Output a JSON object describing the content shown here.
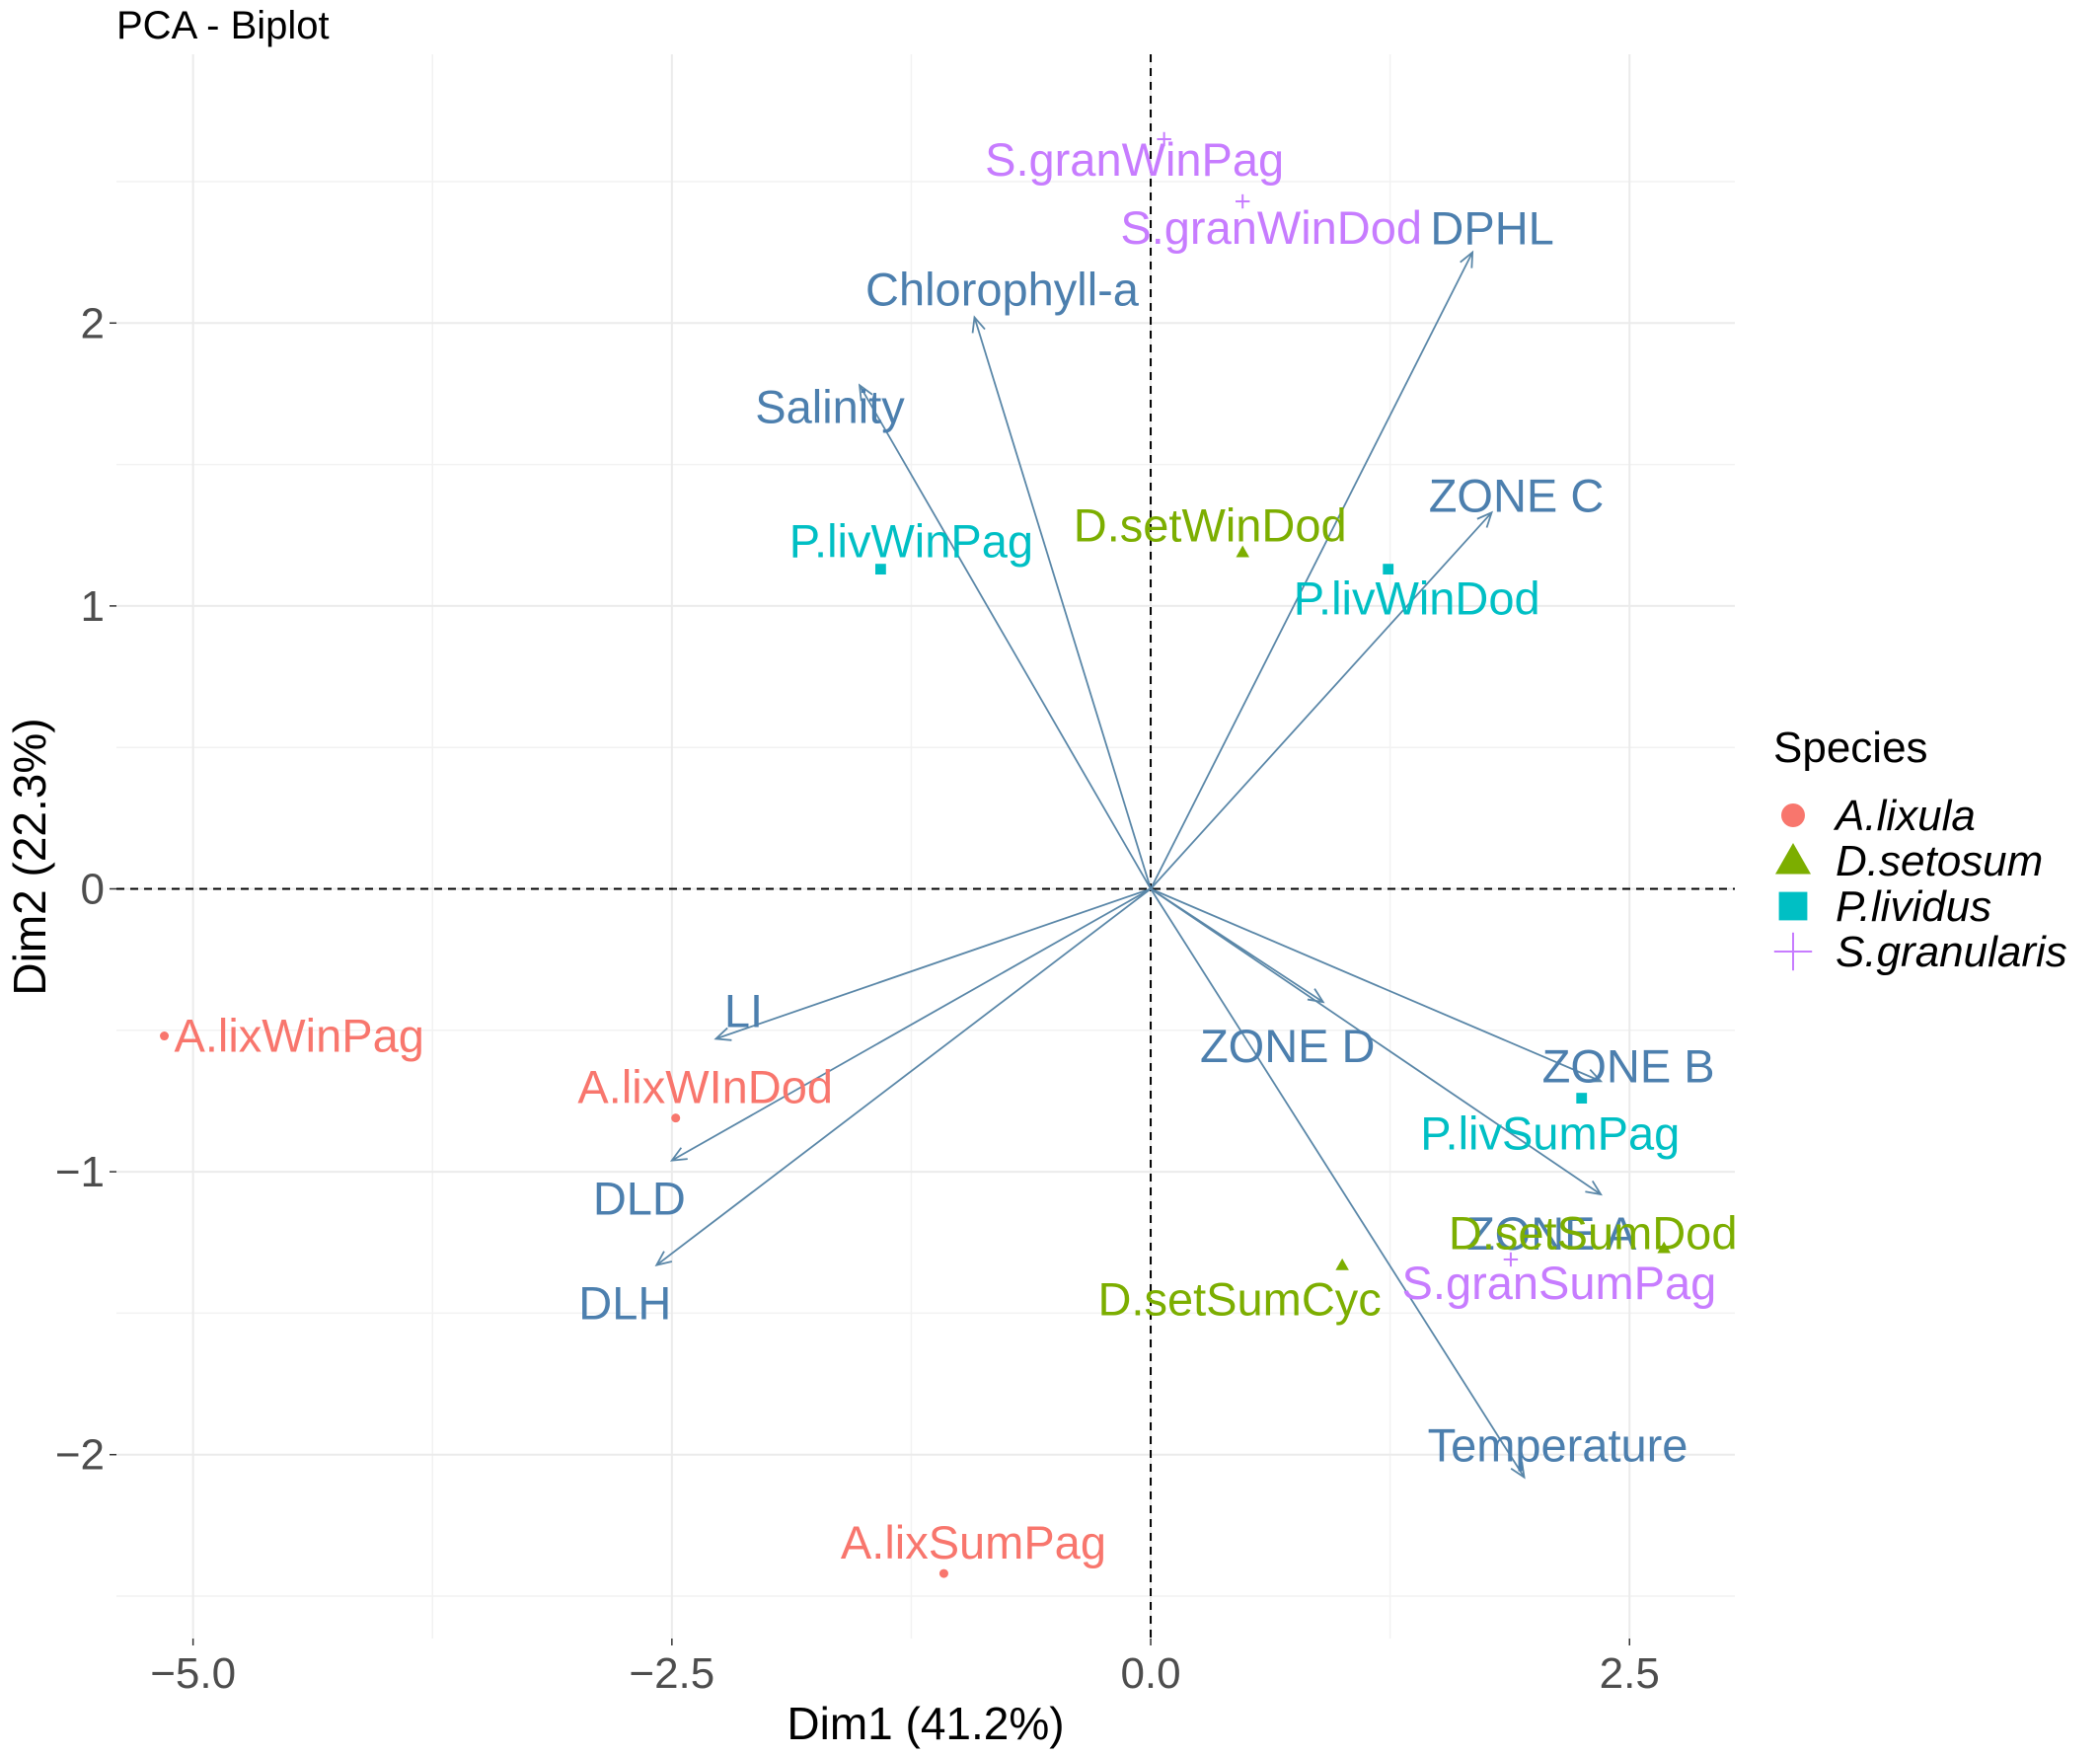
{
  "chart_data": {
    "type": "scatter",
    "title": "PCA - Biplot",
    "xlabel": "Dim1 (41.2%)",
    "ylabel": "Dim2 (22.3%)",
    "xlim": [
      -5.4,
      3.05
    ],
    "ylim": [
      -2.65,
      2.95
    ],
    "x_ticks": [
      -5.0,
      -2.5,
      0.0,
      2.5
    ],
    "x_tick_labels": [
      "−5.0",
      "−2.5",
      "0.0",
      "2.5"
    ],
    "y_ticks": [
      -2,
      -1,
      0,
      1,
      2
    ],
    "y_tick_labels": [
      "−2",
      "−1",
      "0",
      "1",
      "2"
    ],
    "grid": true,
    "reference_lines": "dashed at x=0 and y=0",
    "legend": {
      "title": "Species",
      "placement": "right",
      "entries": [
        {
          "name": "A.lixula",
          "shape": "circle",
          "color": "#f8766d"
        },
        {
          "name": "D.setosum",
          "shape": "triangle",
          "color": "#7cae00"
        },
        {
          "name": "P.lividus",
          "shape": "square",
          "color": "#00bfc4"
        },
        {
          "name": "S.granularis",
          "shape": "plus",
          "color": "#c77cff"
        }
      ]
    },
    "individuals": [
      {
        "label": "A.lixWinPag",
        "group": "A.lixula",
        "x": -5.15,
        "y": -0.52
      },
      {
        "label": "A.lixWInDod",
        "group": "A.lixula",
        "x": -2.48,
        "y": -0.81
      },
      {
        "label": "A.lixSumPag",
        "group": "A.lixula",
        "x": -1.08,
        "y": -2.42
      },
      {
        "label": "D.setWinDod",
        "group": "D.setosum",
        "x": 0.48,
        "y": 1.19
      },
      {
        "label": "D.setSumCyc",
        "group": "D.setosum",
        "x": 1.0,
        "y": -1.33
      },
      {
        "label": "D.setSumDod",
        "group": "D.setosum",
        "x": 2.68,
        "y": -1.27
      },
      {
        "label": "P.livWinPag",
        "group": "P.lividus",
        "x": -1.41,
        "y": 1.13
      },
      {
        "label": "P.livWinDod",
        "group": "P.lividus",
        "x": 1.24,
        "y": 1.13
      },
      {
        "label": "P.livSumPag",
        "group": "P.lividus",
        "x": 2.25,
        "y": -0.74
      },
      {
        "label": "S.granWinPag",
        "group": "S.granularis",
        "x": 0.07,
        "y": 2.65
      },
      {
        "label": "S.granWinDod",
        "group": "S.granularis",
        "x": 0.48,
        "y": 2.43
      },
      {
        "label": "S.granSumPag",
        "group": "S.granularis",
        "x": 1.88,
        "y": -1.31
      }
    ],
    "variables": [
      {
        "label": "DPHL",
        "x": 1.68,
        "y": 2.25
      },
      {
        "label": "Chlorophyll-a",
        "x": -0.92,
        "y": 2.02
      },
      {
        "label": "Salinity",
        "x": -1.52,
        "y": 1.78
      },
      {
        "label": "ZONE C",
        "x": 1.78,
        "y": 1.33
      },
      {
        "label": "LI",
        "x": -2.27,
        "y": -0.53
      },
      {
        "label": "DLD",
        "x": -2.5,
        "y": -0.96
      },
      {
        "label": "DLH",
        "x": -2.58,
        "y": -1.33
      },
      {
        "label": "ZONE D",
        "x": 0.9,
        "y": -0.4
      },
      {
        "label": "ZONE B",
        "x": 2.35,
        "y": -0.68
      },
      {
        "label": "ZONE A",
        "x": 2.35,
        "y": -1.08
      },
      {
        "label": "Temperature",
        "x": 1.95,
        "y": -2.08
      }
    ]
  }
}
